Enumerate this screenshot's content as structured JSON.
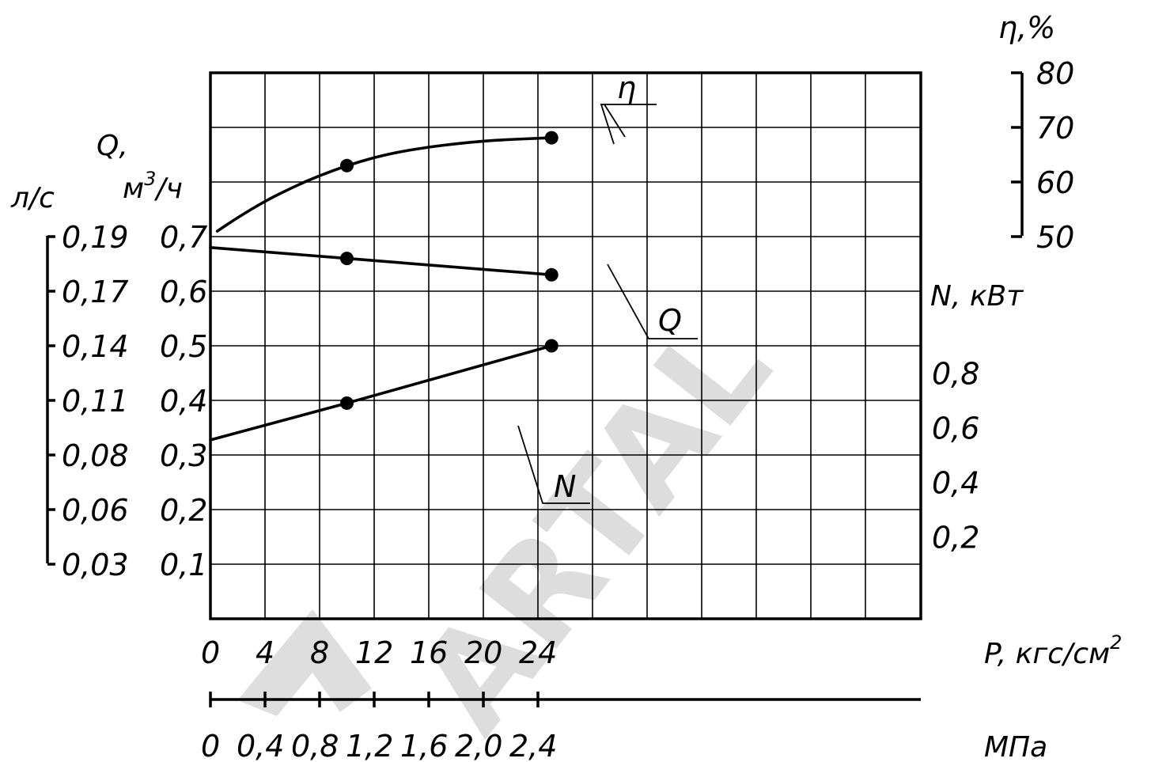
{
  "chart_data": {
    "type": "line",
    "x_unit_label": "P,  кгс/см",
    "x_unit_sup": "2",
    "x_ticks": [
      0,
      4,
      8,
      12,
      16,
      20,
      24
    ],
    "x_tick_labels": [
      "0",
      "4",
      "8",
      "12",
      "16",
      "20",
      "24"
    ],
    "x_range": [
      0,
      26
    ],
    "x2_unit_label": "МПа",
    "x2_ticks": [
      0,
      0.4,
      0.8,
      1.2,
      1.6,
      2.0,
      2.4
    ],
    "x2_tick_labels": [
      "0",
      "0,4",
      "0,8",
      "1,2",
      "1,6",
      "2,0",
      "2,4"
    ],
    "y_range": [
      0,
      1.0
    ],
    "q_m3h_label_q": "Q,",
    "q_m3h_label_unit": "м",
    "q_m3h_label_sup": "3",
    "q_m3h_label_tail": "/ч",
    "q_m3h_ticks": [
      0.1,
      0.2,
      0.3,
      0.4,
      0.5,
      0.6,
      0.7
    ],
    "q_m3h_tick_labels": [
      "0,1",
      "0,2",
      "0,3",
      "0,4",
      "0,5",
      "0,6",
      "0,7"
    ],
    "q_ls_label": "л/с",
    "q_ls_tick_labels": [
      "0,19",
      "0,17",
      "0,14",
      "0,11",
      "0,08",
      "0,06",
      "0,03"
    ],
    "eta_label": "η,%",
    "eta_ticks": [
      80,
      70,
      60,
      50
    ],
    "eta_tick_labels": [
      "80",
      "70",
      "60",
      "50"
    ],
    "n_label": "N,  кВт",
    "n_ticks": [
      0.8,
      0.6,
      0.4,
      0.2
    ],
    "n_tick_labels": [
      "0,8",
      "0,6",
      "0,4",
      "0,2"
    ],
    "series": [
      {
        "name": "η",
        "unit": "%",
        "x": [
          0.5,
          2,
          4,
          6,
          8,
          10,
          12,
          14,
          16,
          18,
          20,
          22,
          24,
          25
        ],
        "y": [
          51,
          53.5,
          56.5,
          59,
          61.2,
          63,
          64.5,
          65.6,
          66.4,
          67,
          67.5,
          67.8,
          68,
          68.1
        ],
        "markers_x": [
          10,
          25
        ],
        "markers_y": [
          63,
          68.1
        ]
      },
      {
        "name": "Q",
        "unit": "м3/ч",
        "x": [
          0,
          10,
          25
        ],
        "y": [
          0.68,
          0.66,
          0.63
        ],
        "markers_x": [
          10,
          25
        ],
        "markers_y": [
          0.66,
          0.63
        ]
      },
      {
        "name": "N",
        "unit": "кВт",
        "x": [
          0,
          10,
          25
        ],
        "y": [
          0.555,
          0.69,
          0.9
        ],
        "markers_x": [
          10,
          25
        ],
        "markers_y": [
          0.69,
          0.9
        ]
      }
    ],
    "curve_labels": [
      "η",
      "Q",
      "N"
    ]
  },
  "watermark": "ARTAL"
}
